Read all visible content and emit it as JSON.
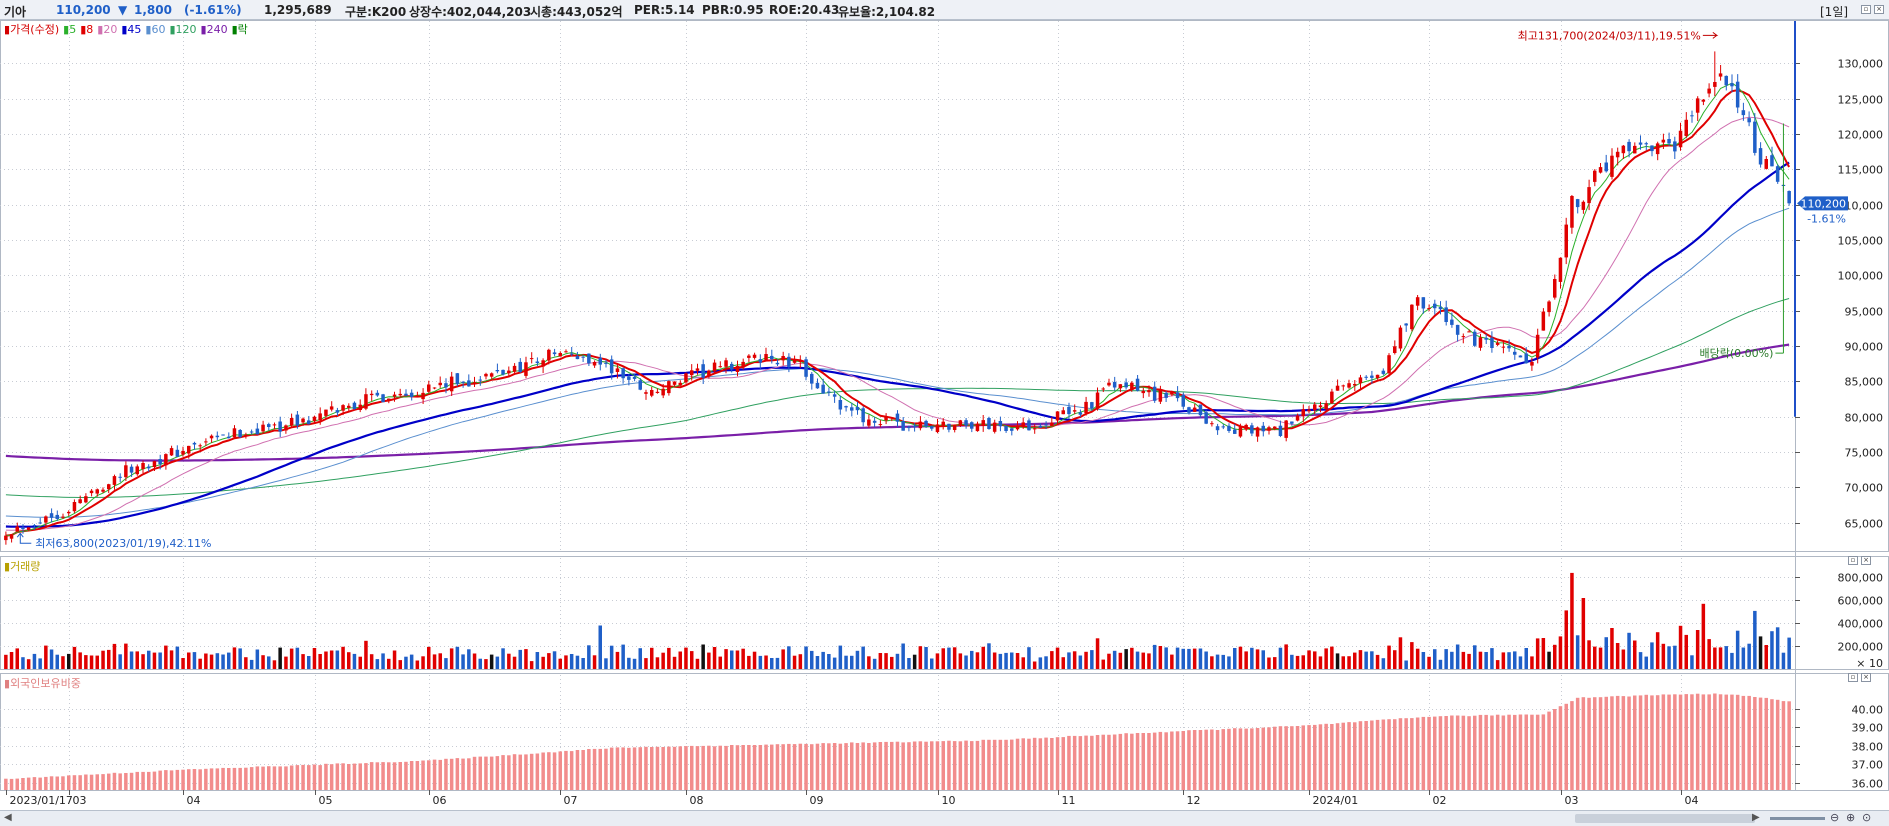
{
  "header": {
    "stock_name": "기아",
    "price": "110,200",
    "change_arrow": "▼",
    "change": "1,800",
    "change_pct": "(-1.61%)",
    "volume": "1,295,689",
    "info_segments": [
      "구분:K200",
      "상장수:402,044,203",
      "시총:443,052억",
      "PER:5.14",
      "PBR:0.95",
      "ROE:20.43",
      "유보율:2,104.82"
    ],
    "period_label": "[1일]"
  },
  "price_panel": {
    "legend": [
      {
        "label": "가격(수정)",
        "color": "#d40000"
      },
      {
        "label": "5",
        "color": "#2ab02a"
      },
      {
        "label": "8",
        "color": "#e00000"
      },
      {
        "label": "20",
        "color": "#d070b0"
      },
      {
        "label": "45",
        "color": "#0000c8"
      },
      {
        "label": "60",
        "color": "#5a8fcf"
      },
      {
        "label": "120",
        "color": "#30a060"
      },
      {
        "label": "240",
        "color": "#7a1fa8"
      },
      {
        "label": "락",
        "color": "#008000"
      }
    ],
    "current_price_tag": "110,200",
    "current_change_tag": "-1.61%",
    "high_annotation": "최고131,700(2024/03/11),19.51%",
    "low_annotation": "최저63,800(2023/01/19),42.11%",
    "dividend_annotation": "배당락(0.00%)"
  },
  "volume_panel": {
    "legend": "거래량",
    "multiplier": "× 10"
  },
  "foreign_panel": {
    "legend": "외국인보유비중"
  },
  "colors": {
    "up": "#e00000",
    "down": "#1f5fc8",
    "foreign_bar": "#f28c8c",
    "tag_bg": "#1f5fc8"
  },
  "icons": [
    "window-button-icon",
    "scroll-left-icon",
    "scroll-right-icon",
    "zoom-out-icon",
    "zoom-in-icon",
    "zoom-reset-icon"
  ],
  "chart_data": [
    {
      "type": "candlestick",
      "title": "기아",
      "x_range": [
        "2023/01/17",
        "2024/03/28"
      ],
      "ylim": [
        61000,
        136000
      ],
      "y_ticks": [
        65000,
        70000,
        75000,
        80000,
        85000,
        90000,
        95000,
        100000,
        105000,
        110000,
        115000,
        120000,
        125000,
        130000
      ],
      "x_tick_labels": [
        "2023/01/17",
        "03",
        "04",
        "05",
        "06",
        "07",
        "08",
        "09",
        "10",
        "11",
        "12",
        "2024/01",
        "02",
        "03",
        "04"
      ],
      "close_anchors": [
        [
          "2023/01/17",
          63800
        ],
        [
          "2023/01/31",
          66500
        ],
        [
          "2023/02/14",
          72000
        ],
        [
          "2023/02/28",
          75000
        ],
        [
          "2023/03/15",
          77800
        ],
        [
          "2023/03/31",
          79500
        ],
        [
          "2023/04/14",
          82500
        ],
        [
          "2023/04/28",
          84000
        ],
        [
          "2023/05/15",
          85500
        ],
        [
          "2023/05/31",
          89000
        ],
        [
          "2023/06/09",
          88000
        ],
        [
          "2023/06/23",
          83500
        ],
        [
          "2023/07/07",
          86500
        ],
        [
          "2023/07/21",
          88500
        ],
        [
          "2023/07/31",
          87000
        ],
        [
          "2023/08/10",
          80500
        ],
        [
          "2023/08/25",
          78500
        ],
        [
          "2023/09/08",
          79000
        ],
        [
          "2023/09/22",
          78500
        ],
        [
          "2023/10/06",
          81000
        ],
        [
          "2023/10/16",
          84500
        ],
        [
          "2023/10/31",
          82500
        ],
        [
          "2023/11/10",
          78000
        ],
        [
          "2023/11/24",
          78000
        ],
        [
          "2023/12/08",
          83500
        ],
        [
          "2023/12/20",
          87000
        ],
        [
          "2023/12/28",
          97000
        ],
        [
          "2024/01/10",
          91000
        ],
        [
          "2024/01/25",
          87500
        ],
        [
          "2024/02/05",
          110000
        ],
        [
          "2024/02/15",
          117000
        ],
        [
          "2024/02/29",
          118000
        ],
        [
          "2024/03/08",
          127000
        ],
        [
          "2024/03/14",
          127500
        ],
        [
          "2024/03/20",
          118000
        ],
        [
          "2024/03/28",
          110200
        ]
      ],
      "high": {
        "date": "2024/03/11",
        "value": 131700
      },
      "low": {
        "date": "2023/01/19",
        "value": 63800
      },
      "moving_averages": [
        "5",
        "8",
        "20",
        "45",
        "60",
        "120",
        "240"
      ]
    },
    {
      "type": "bar",
      "title": "거래량",
      "unit_note": "× 10",
      "ylim": [
        0,
        900000
      ],
      "y_ticks": [
        200000,
        400000,
        600000,
        800000
      ],
      "peaks": [
        [
          "2024/02/05",
          840000
        ],
        [
          "2024/02/07",
          620000
        ],
        [
          "2023/06/12",
          380000
        ],
        [
          "2024/03/07",
          570000
        ]
      ]
    },
    {
      "type": "bar",
      "title": "외국인보유비중",
      "ylim": [
        35.6,
        41.4
      ],
      "y_ticks": [
        36.0,
        37.0,
        38.0,
        39.0,
        40.0
      ],
      "anchors": [
        [
          "2023/01/17",
          36.2
        ],
        [
          "2023/03/01",
          36.7
        ],
        [
          "2023/05/01",
          37.2
        ],
        [
          "2023/06/15",
          37.9
        ],
        [
          "2023/08/01",
          38.1
        ],
        [
          "2023/09/15",
          38.3
        ],
        [
          "2023/11/01",
          38.8
        ],
        [
          "2023/12/01",
          39.1
        ],
        [
          "2024/01/02",
          39.6
        ],
        [
          "2024/01/29",
          39.7
        ],
        [
          "2024/02/06",
          40.6
        ],
        [
          "2024/03/01",
          40.8
        ],
        [
          "2024/03/14",
          40.8
        ],
        [
          "2024/03/28",
          40.4
        ]
      ]
    }
  ]
}
